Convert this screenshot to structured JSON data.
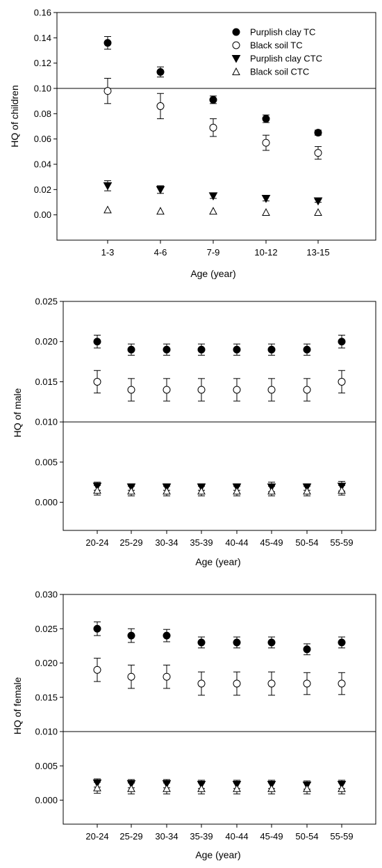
{
  "chart_data": [
    {
      "type": "scatter",
      "xlabel": "Age (year)",
      "ylabel": "HQ of children",
      "ylim": [
        -0.02,
        0.16
      ],
      "yticks": [
        "0.00",
        "0.02",
        "0.04",
        "0.06",
        "0.08",
        "0.10",
        "0.12",
        "0.14",
        "0.16"
      ],
      "categories": [
        "1-3",
        "4-6",
        "7-9",
        "10-12",
        "13-15"
      ],
      "reference_line": 0.1,
      "legend_position": "top-right",
      "series": [
        {
          "name": "Purplish clay TC",
          "marker": "circle-filled",
          "values": [
            0.136,
            0.113,
            0.091,
            0.076,
            0.065
          ],
          "errors": [
            0.005,
            0.004,
            0.003,
            0.003,
            0.002
          ]
        },
        {
          "name": "Black soil TC",
          "marker": "circle-open",
          "values": [
            0.098,
            0.086,
            0.069,
            0.057,
            0.049
          ],
          "errors": [
            0.01,
            0.01,
            0.007,
            0.006,
            0.005
          ]
        },
        {
          "name": "Purplish clay CTC",
          "marker": "triangle-down-filled",
          "values": [
            0.023,
            0.02,
            0.015,
            0.013,
            0.011
          ],
          "errors": [
            0.004,
            0.003,
            0.002,
            0.002,
            0.001
          ]
        },
        {
          "name": "Black soil CTC",
          "marker": "triangle-up-open",
          "values": [
            0.004,
            0.003,
            0.003,
            0.002,
            0.002
          ],
          "errors": [
            0,
            0,
            0,
            0,
            0
          ]
        }
      ]
    },
    {
      "type": "scatter",
      "xlabel": "Age (year)",
      "ylabel": "HQ of male",
      "ylim": [
        -0.0035,
        0.025
      ],
      "yticks": [
        "0.000",
        "0.005",
        "0.010",
        "0.015",
        "0.020",
        "0.025"
      ],
      "categories": [
        "20-24",
        "25-29",
        "30-34",
        "35-39",
        "40-44",
        "45-49",
        "50-54",
        "55-59"
      ],
      "reference_line": 0.01,
      "series": [
        {
          "name": "Purplish clay TC",
          "marker": "circle-filled",
          "values": [
            0.02,
            0.019,
            0.019,
            0.019,
            0.019,
            0.019,
            0.019,
            0.02
          ],
          "errors": [
            0.0008,
            0.0007,
            0.0007,
            0.0007,
            0.0007,
            0.0007,
            0.0007,
            0.0008
          ]
        },
        {
          "name": "Black soil TC",
          "marker": "circle-open",
          "values": [
            0.015,
            0.014,
            0.014,
            0.014,
            0.014,
            0.014,
            0.014,
            0.015
          ],
          "errors": [
            0.0014,
            0.0014,
            0.0014,
            0.0014,
            0.0014,
            0.0014,
            0.0014,
            0.0014
          ]
        },
        {
          "name": "Purplish clay CTC",
          "marker": "triangle-down-filled",
          "values": [
            0.002,
            0.0019,
            0.0019,
            0.0019,
            0.0019,
            0.0019,
            0.0019,
            0.002
          ],
          "errors": [
            0.0005,
            0.0004,
            0.0004,
            0.0004,
            0.0004,
            0.0006,
            0.0004,
            0.0006
          ]
        },
        {
          "name": "Black soil CTC",
          "marker": "triangle-up-open",
          "values": [
            0.0015,
            0.0014,
            0.0014,
            0.0014,
            0.0014,
            0.0014,
            0.0014,
            0.0015
          ],
          "errors": [
            0.0006,
            0.0006,
            0.0006,
            0.0006,
            0.0006,
            0.0006,
            0.0006,
            0.0006
          ]
        }
      ]
    },
    {
      "type": "scatter",
      "xlabel": "Age (year)",
      "ylabel": "HQ of female",
      "ylim": [
        -0.0035,
        0.03
      ],
      "yticks": [
        "0.000",
        "0.005",
        "0.010",
        "0.015",
        "0.020",
        "0.025",
        "0.030"
      ],
      "categories": [
        "20-24",
        "25-29",
        "30-34",
        "35-39",
        "40-44",
        "45-49",
        "50-54",
        "55-59"
      ],
      "reference_line": 0.01,
      "series": [
        {
          "name": "Purplish clay TC",
          "marker": "circle-filled",
          "values": [
            0.025,
            0.024,
            0.024,
            0.023,
            0.023,
            0.023,
            0.022,
            0.023
          ],
          "errors": [
            0.001,
            0.001,
            0.0009,
            0.0008,
            0.0008,
            0.0008,
            0.0008,
            0.0008
          ]
        },
        {
          "name": "Black soil TC",
          "marker": "circle-open",
          "values": [
            0.019,
            0.018,
            0.018,
            0.017,
            0.017,
            0.017,
            0.017,
            0.017
          ],
          "errors": [
            0.0017,
            0.0017,
            0.0017,
            0.0017,
            0.0017,
            0.0017,
            0.0016,
            0.0016
          ]
        },
        {
          "name": "Purplish clay CTC",
          "marker": "triangle-down-filled",
          "values": [
            0.0025,
            0.0024,
            0.0024,
            0.0023,
            0.0023,
            0.0023,
            0.0022,
            0.0023
          ],
          "errors": [
            0.0006,
            0.0006,
            0.0006,
            0.0006,
            0.0006,
            0.0006,
            0.0006,
            0.0006
          ]
        },
        {
          "name": "Black soil CTC",
          "marker": "triangle-up-open",
          "values": [
            0.0018,
            0.0017,
            0.0017,
            0.0017,
            0.0017,
            0.0017,
            0.0017,
            0.0017
          ],
          "errors": [
            0.0008,
            0.0008,
            0.0008,
            0.0008,
            0.0008,
            0.0008,
            0.0008,
            0.0008
          ]
        }
      ]
    }
  ]
}
